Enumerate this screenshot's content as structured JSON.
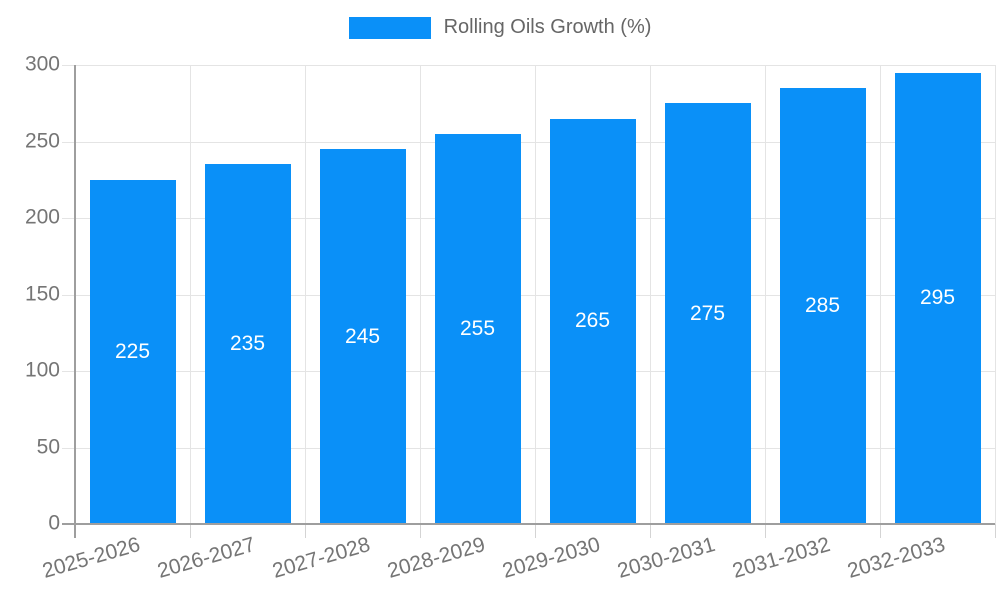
{
  "chart_data": {
    "type": "bar",
    "title": "",
    "legend": "Rolling Oils Growth (%)",
    "legend_position": "top",
    "categories": [
      "2025-2026",
      "2026-2027",
      "2027-2028",
      "2028-2029",
      "2029-2030",
      "2030-2031",
      "2031-2032",
      "2032-2033"
    ],
    "values": [
      225,
      235,
      245,
      255,
      265,
      275,
      285,
      295
    ],
    "xlabel": "",
    "ylabel": "",
    "ylim": [
      0,
      300
    ],
    "yticks": [
      0,
      50,
      100,
      150,
      200,
      250,
      300
    ],
    "grid": true,
    "bar_labels_inside": true,
    "colors": {
      "bar": "#0a90f8",
      "bar_label": "#ffffff",
      "grid": "#e4e4e4",
      "tick": "#d4d4d4",
      "axis": "#9e9e9e",
      "tick_text": "#757575",
      "legend_text": "#666666",
      "background": "#ffffff"
    }
  }
}
